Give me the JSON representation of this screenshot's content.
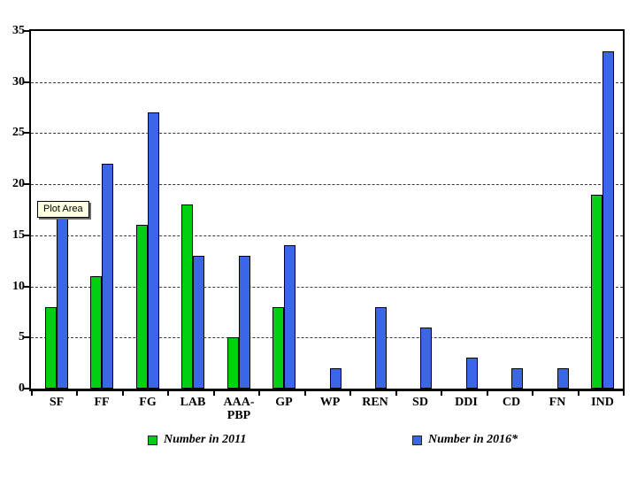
{
  "tooltip": {
    "text": "Plot Area",
    "bg": "#ffffe1"
  },
  "legend": {
    "items": [
      {
        "label": "Number in 2011",
        "color": "#00d010"
      },
      {
        "label": "Number in 2016*",
        "color": "#3b67e6"
      }
    ]
  },
  "chart_data": {
    "type": "bar",
    "title": "",
    "xlabel": "",
    "ylabel": "",
    "categories": [
      "SF",
      "FF",
      "FG",
      "LAB",
      "AAA-PBP",
      "GP",
      "WP",
      "REN",
      "SD",
      "DDI",
      "CD",
      "FN",
      "IND"
    ],
    "categories_display": [
      [
        "SF"
      ],
      [
        "FF"
      ],
      [
        "FG"
      ],
      [
        "LAB"
      ],
      [
        "AAA-",
        "PBP"
      ],
      [
        "GP"
      ],
      [
        "WP"
      ],
      [
        "REN"
      ],
      [
        "SD"
      ],
      [
        "DDI"
      ],
      [
        "CD"
      ],
      [
        "FN"
      ],
      [
        "IND"
      ]
    ],
    "series": [
      {
        "name": "Number in 2011",
        "color": "#00d010",
        "values": [
          8,
          11,
          16,
          18,
          5,
          8,
          0,
          0,
          0,
          0,
          0,
          0,
          19
        ]
      },
      {
        "name": "Number in 2016*",
        "color": "#3b67e6",
        "values": [
          17,
          22,
          27,
          13,
          13,
          14,
          2,
          8,
          6,
          3,
          2,
          2,
          33
        ]
      }
    ],
    "ylim": [
      0,
      35
    ],
    "yticks": [
      0,
      5,
      10,
      15,
      20,
      25,
      30,
      35
    ],
    "grid": "horizontal-dashed",
    "legend_position": "bottom",
    "plot_border_color": "#000000",
    "gridline_color": "#3a3a3a"
  }
}
